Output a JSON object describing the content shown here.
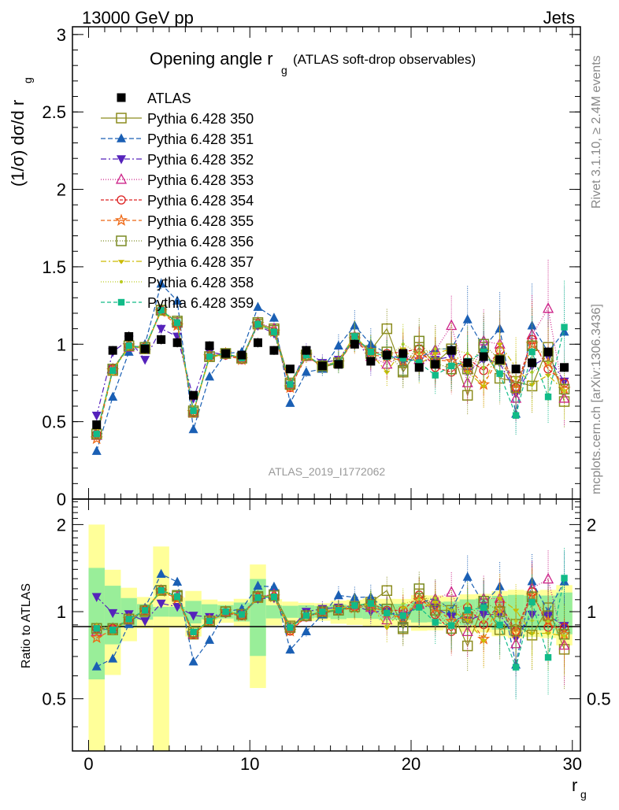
{
  "header": {
    "left": "13000 GeV pp",
    "right": "Jets"
  },
  "side_labels": {
    "top": "Rivet 3.1.10, ≥ 2.4M events",
    "bottom": "mcplots.cern.ch [arXiv:1306.3436]"
  },
  "watermark": "ATLAS_2019_I1772062",
  "chart_data": {
    "type": "scatter",
    "title_main": "Opening angle r",
    "title_sub": "g",
    "title_tail": "(ATLAS soft-drop observables)",
    "ylabel": "(1/σ) dσ/d r",
    "ylabel_sub": "g",
    "xlabel": "r",
    "xlabel_sub": "g",
    "ratio_ylabel": "Ratio to ATLAS",
    "xlim": [
      -1,
      30.5
    ],
    "ylim": [
      0,
      3.05
    ],
    "ratio_ylim": [
      0.33,
      2.45
    ],
    "xticks": [
      0,
      10,
      20,
      30
    ],
    "yticks": [
      0,
      0.5,
      1,
      1.5,
      2,
      2.5,
      3
    ],
    "ytick_labels": [
      "0",
      "0.5",
      "1",
      "1.5",
      "2",
      "2.5",
      "3"
    ],
    "ratio_yticks": [
      0.5,
      1,
      2
    ],
    "ratio_ytick_labels": [
      "0.5",
      "1",
      "2"
    ],
    "x": [
      0.5,
      1.5,
      2.5,
      3.5,
      4.5,
      5.5,
      6.5,
      7.5,
      8.5,
      9.5,
      10.5,
      11.5,
      12.5,
      13.5,
      14.5,
      15.5,
      16.5,
      17.5,
      18.5,
      19.5,
      20.5,
      21.5,
      22.5,
      23.5,
      24.5,
      25.5,
      26.5,
      27.5,
      28.5,
      29.5
    ],
    "data": {
      "name": "ATLAS",
      "values": [
        0.48,
        0.96,
        1.05,
        0.97,
        1.03,
        1.01,
        0.67,
        0.99,
        0.94,
        0.93,
        1.01,
        0.96,
        0.84,
        0.96,
        0.86,
        0.87,
        1.0,
        0.89,
        0.93,
        0.94,
        0.85,
        0.87,
        0.96,
        0.88,
        0.92,
        0.9,
        0.84,
        0.88,
        0.95,
        0.85
      ],
      "band_inner": [
        0.2,
        0.22,
        0.12,
        0.06,
        0.04,
        0.04,
        0.06,
        0.06,
        0.05,
        0.07,
        0.3,
        0.05,
        0.04,
        0.05,
        0.04,
        0.05,
        0.05,
        0.05,
        0.06,
        0.06,
        0.07,
        0.07,
        0.08,
        0.09,
        0.1,
        0.12,
        0.12,
        0.12,
        0.13,
        0.14
      ],
      "band_outer": [
        0.48,
        0.38,
        0.22,
        0.12,
        0.7,
        0.12,
        0.12,
        0.1,
        0.08,
        0.1,
        0.46,
        0.1,
        0.07,
        0.07,
        0.06,
        0.08,
        0.1,
        0.1,
        0.1,
        0.1,
        0.12,
        0.12,
        0.12,
        0.13,
        0.14,
        0.16,
        0.16,
        0.16,
        0.18,
        0.2
      ]
    },
    "series": [
      {
        "name": "Pythia 6.428 350",
        "color": "#8c8c1e",
        "marker": "square-open",
        "dash": "",
        "values": [
          0.42,
          0.83,
          0.99,
          0.97,
          1.22,
          1.14,
          0.56,
          0.92,
          0.94,
          0.91,
          1.13,
          1.1,
          0.75,
          0.93,
          0.85,
          0.88,
          1.04,
          0.96,
          1.1,
          0.82,
          0.98,
          0.88,
          0.97,
          0.67,
          0.98,
          0.78,
          0.76,
          0.73,
          0.98,
          0.63
        ]
      },
      {
        "name": "Pythia 6.428 351",
        "color": "#1a5fb4",
        "marker": "triangle-up",
        "dash": "6,3",
        "values": [
          0.31,
          0.66,
          0.95,
          1.0,
          1.39,
          1.28,
          0.45,
          0.79,
          0.94,
          0.95,
          1.24,
          1.17,
          0.62,
          0.82,
          0.84,
          0.99,
          1.12,
          1.0,
          0.94,
          0.88,
          0.91,
          0.97,
          0.97,
          1.16,
          0.98,
          1.1,
          0.55,
          1.12,
          0.95,
          1.08
        ]
      },
      {
        "name": "Pythia 6.428 352",
        "color": "#5522bb",
        "marker": "triangle-down",
        "dash": "7,3,2,3",
        "values": [
          0.54,
          0.95,
          1.03,
          0.9,
          1.1,
          1.05,
          0.65,
          0.95,
          0.93,
          0.91,
          1.12,
          1.07,
          0.73,
          0.96,
          0.88,
          0.9,
          1.05,
          0.89,
          0.93,
          0.91,
          0.89,
          0.9,
          0.92,
          0.82,
          0.9,
          0.88,
          0.68,
          0.86,
          0.92,
          0.76
        ]
      },
      {
        "name": "Pythia 6.428 353",
        "color": "#cc2288",
        "marker": "triangle-up-open",
        "dash": "1,2",
        "values": [
          0.41,
          0.84,
          0.98,
          0.98,
          1.22,
          1.14,
          0.56,
          0.93,
          0.94,
          0.91,
          1.14,
          1.1,
          0.74,
          0.92,
          0.86,
          0.89,
          1.05,
          0.92,
          0.87,
          0.93,
          0.9,
          0.96,
          1.12,
          0.75,
          1.02,
          1.0,
          0.65,
          1.06,
          1.23,
          0.65
        ]
      },
      {
        "name": "Pythia 6.428 354",
        "color": "#dd2222",
        "marker": "circle-open",
        "dash": "4,2",
        "values": [
          0.42,
          0.84,
          0.99,
          0.98,
          1.22,
          1.13,
          0.56,
          0.92,
          0.93,
          0.9,
          1.13,
          1.08,
          0.72,
          0.92,
          0.86,
          0.88,
          1.04,
          0.95,
          0.94,
          0.95,
          0.97,
          0.85,
          0.82,
          0.91,
          0.83,
          0.96,
          0.72,
          1.03,
          0.84,
          0.75
        ]
      },
      {
        "name": "Pythia 6.428 355",
        "color": "#ee6611",
        "marker": "star-open",
        "dash": "5,3",
        "values": [
          0.39,
          0.83,
          0.99,
          0.98,
          1.21,
          1.12,
          0.56,
          0.92,
          0.94,
          0.9,
          1.13,
          1.08,
          0.72,
          0.93,
          0.86,
          0.88,
          1.03,
          0.93,
          0.92,
          0.89,
          0.93,
          0.9,
          0.89,
          0.85,
          0.74,
          0.92,
          0.71,
          1.0,
          0.88,
          0.71
        ]
      },
      {
        "name": "Pythia 6.428 356",
        "color": "#7a8a22",
        "marker": "square-open",
        "dash": "1,2",
        "values": [
          0.42,
          0.84,
          0.99,
          0.98,
          1.22,
          1.15,
          0.57,
          0.92,
          0.94,
          0.91,
          1.14,
          1.09,
          0.74,
          0.93,
          0.86,
          0.88,
          1.04,
          0.94,
          0.95,
          0.83,
          1.02,
          0.88,
          0.84,
          0.84,
          1.0,
          0.9,
          0.72,
          0.99,
          0.92,
          0.71
        ]
      },
      {
        "name": "Pythia 6.428 357",
        "color": "#ccbb00",
        "marker": "tri-dot",
        "dash": "7,3,2,3",
        "values": [
          0.42,
          0.83,
          0.98,
          0.98,
          1.21,
          1.14,
          0.57,
          0.91,
          0.94,
          0.91,
          1.13,
          1.08,
          0.74,
          0.93,
          0.86,
          0.89,
          1.06,
          0.94,
          0.82,
          0.97,
          0.87,
          0.94,
          0.97,
          0.82,
          0.73,
          1.0,
          0.85,
          0.74,
          0.8,
          0.7
        ]
      },
      {
        "name": "Pythia 6.428 358",
        "color": "#bbcc22",
        "marker": "dot",
        "dash": "1,2",
        "values": [
          0.43,
          0.84,
          0.99,
          0.97,
          1.23,
          1.13,
          0.57,
          0.92,
          0.94,
          0.9,
          1.13,
          1.09,
          0.74,
          0.92,
          0.86,
          0.89,
          1.04,
          0.96,
          0.91,
          1.0,
          0.94,
          0.97,
          0.97,
          0.94,
          0.85,
          0.9,
          0.78,
          0.82,
          0.88,
          0.7
        ]
      },
      {
        "name": "Pythia 6.428 359",
        "color": "#11bb88",
        "marker": "square-filled",
        "dash": "5,3",
        "values": [
          0.42,
          0.83,
          0.99,
          0.98,
          1.22,
          1.14,
          0.57,
          0.92,
          0.94,
          0.91,
          1.13,
          1.08,
          0.74,
          0.93,
          0.86,
          0.88,
          1.05,
          0.95,
          0.92,
          0.91,
          0.88,
          0.8,
          0.86,
          0.89,
          0.95,
          0.81,
          0.54,
          0.95,
          0.66,
          1.11
        ]
      }
    ]
  }
}
